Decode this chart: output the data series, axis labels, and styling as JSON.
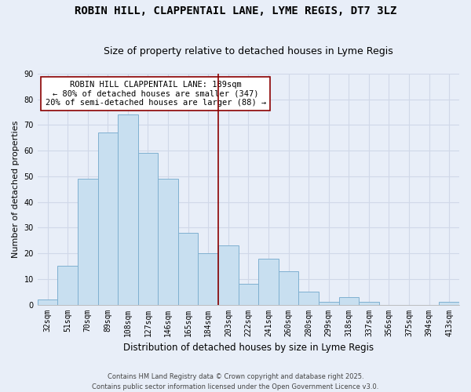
{
  "title": "ROBIN HILL, CLAPPENTAIL LANE, LYME REGIS, DT7 3LZ",
  "subtitle": "Size of property relative to detached houses in Lyme Regis",
  "xlabel": "Distribution of detached houses by size in Lyme Regis",
  "ylabel": "Number of detached properties",
  "bar_color": "#c8dff0",
  "bar_edge_color": "#7fb0d0",
  "background_color": "#e8eef8",
  "grid_color": "#d0d8e8",
  "categories": [
    "32sqm",
    "51sqm",
    "70sqm",
    "89sqm",
    "108sqm",
    "127sqm",
    "146sqm",
    "165sqm",
    "184sqm",
    "203sqm",
    "222sqm",
    "241sqm",
    "260sqm",
    "280sqm",
    "299sqm",
    "318sqm",
    "337sqm",
    "356sqm",
    "375sqm",
    "394sqm",
    "413sqm"
  ],
  "values": [
    2,
    15,
    49,
    67,
    74,
    59,
    49,
    28,
    20,
    23,
    8,
    18,
    13,
    5,
    1,
    3,
    1,
    0,
    0,
    0,
    1
  ],
  "vline_color": "#8b0000",
  "annotation_title": "ROBIN HILL CLAPPENTAIL LANE: 189sqm",
  "annotation_line1": "← 80% of detached houses are smaller (347)",
  "annotation_line2": "20% of semi-detached houses are larger (88) →",
  "footnote1": "Contains HM Land Registry data © Crown copyright and database right 2025.",
  "footnote2": "Contains public sector information licensed under the Open Government Licence v3.0.",
  "ylim": [
    0,
    90
  ],
  "title_fontsize": 10,
  "subtitle_fontsize": 9,
  "xlabel_fontsize": 8.5,
  "ylabel_fontsize": 8,
  "tick_fontsize": 7,
  "annot_fontsize": 7.5
}
